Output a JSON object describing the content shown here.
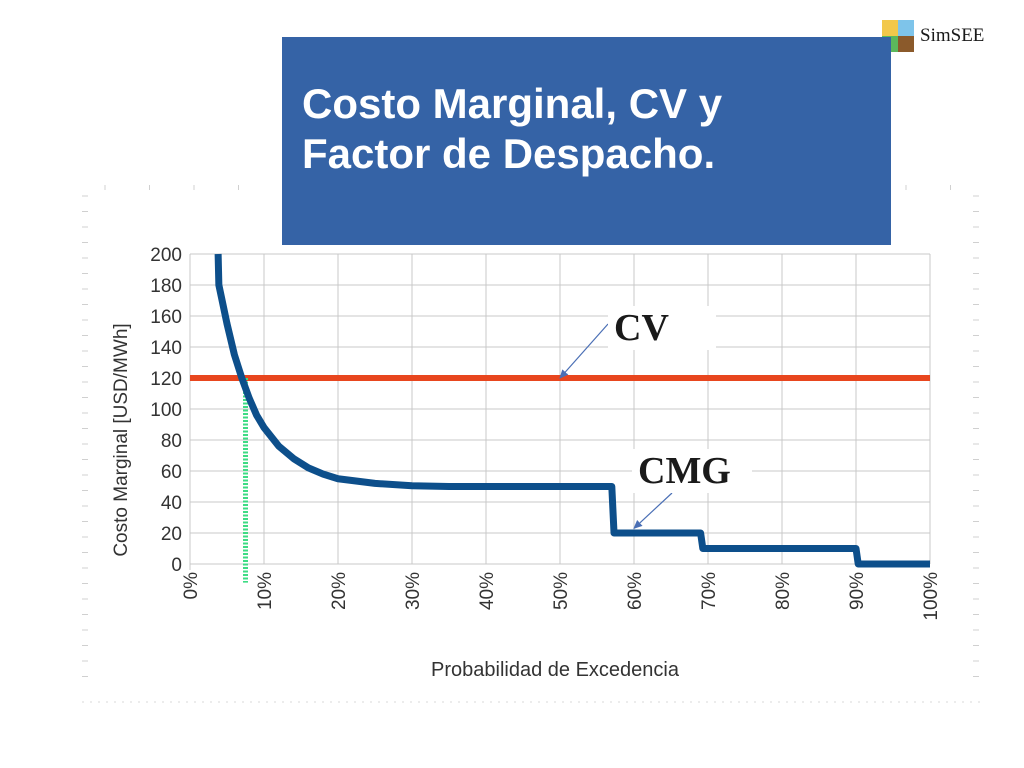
{
  "brand": {
    "name": "SimSEE",
    "logo_colors": [
      "#f2c84b",
      "#7ec4ea",
      "#5cb85c",
      "#8b5a2b"
    ]
  },
  "slide": {
    "title_line1": "Costo Marginal, CV y",
    "title_line2": "Factor de Despacho."
  },
  "colors": {
    "title_bg": "#3563a6",
    "cmg": "#0d4f8b",
    "cv": "#e8461e",
    "dispatch": "#3ddc84",
    "grid": "#c8c8c8"
  },
  "chart_data": {
    "type": "line",
    "xlabel": "Probabilidad de Excedencia",
    "ylabel": "Costo Marginal [USD/MWh]",
    "xlim": [
      0,
      100
    ],
    "ylim": [
      0,
      200
    ],
    "x_ticks": [
      0,
      10,
      20,
      30,
      40,
      50,
      60,
      70,
      80,
      90,
      100
    ],
    "x_tick_labels": [
      "0%",
      "10%",
      "20%",
      "30%",
      "40%",
      "50%",
      "60%",
      "70%",
      "80%",
      "90%",
      "100%"
    ],
    "y_ticks": [
      0,
      20,
      40,
      60,
      80,
      100,
      120,
      140,
      160,
      180,
      200
    ],
    "y_tick_labels": [
      "0",
      "20",
      "40",
      "60",
      "80",
      "100",
      "120",
      "140",
      "160",
      "180",
      "200"
    ],
    "grid": true,
    "series": [
      {
        "name": "CMG",
        "x": [
          3.8,
          3.9,
          5,
          6,
          7,
          8,
          9,
          10,
          12,
          14,
          16,
          18,
          20,
          25,
          30,
          35,
          40,
          50,
          57,
          57.3,
          58,
          69,
          69.3,
          70,
          90,
          90.3,
          91,
          100
        ],
        "y": [
          200,
          180,
          155,
          135,
          120,
          107,
          96,
          88,
          76,
          68,
          62,
          58,
          55,
          52,
          50.5,
          50,
          50,
          50,
          50,
          20,
          20,
          20,
          10,
          10,
          10,
          0,
          0,
          0
        ]
      },
      {
        "name": "CV",
        "x": [
          0,
          100
        ],
        "y": [
          120,
          120
        ]
      }
    ],
    "dispatch_marker": {
      "x": 7.5,
      "y_top": 120,
      "y_bottom": -12
    },
    "annotations": [
      {
        "text": "CV",
        "target_series": "CV",
        "arrow_to": [
          50,
          120
        ]
      },
      {
        "text": "CMG",
        "target_series": "CMG",
        "arrow_to": [
          60,
          23
        ]
      }
    ]
  }
}
